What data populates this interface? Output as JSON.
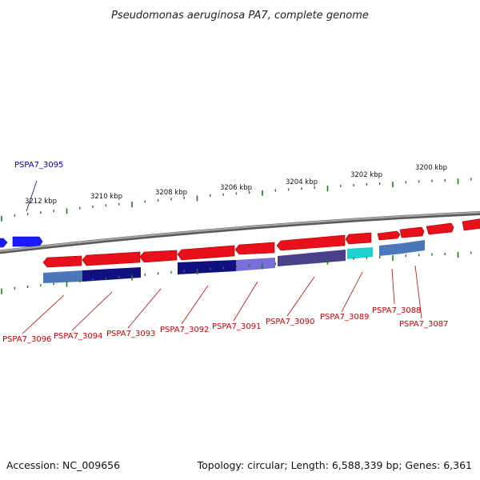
{
  "title": "Pseudomonas aeruginosa PA7, complete genome",
  "accession": "Accession: NC_009656",
  "summary": "Topology: circular; Length: 6,588,339 bp; Genes: 6,361",
  "ruler_labels": [
    "3212 kbp",
    "3210 kbp",
    "3208 kbp",
    "3206 kbp",
    "3204 kbp",
    "3202 kbp",
    "3200 kbp"
  ],
  "gene_labels": [
    "PSPA7_3095",
    "PSPA7_3096",
    "PSPA7_3094",
    "PSPA7_3093",
    "PSPA7_3092",
    "PSPA7_3091",
    "PSPA7_3090",
    "PSPA7_3089",
    "PSPA7_3088",
    "PSPA7_3087"
  ],
  "colors": {
    "backbone": "#8a8a8a",
    "gene_red": "#e8101a",
    "gene_blue": "#1a1aff",
    "tick_green": "#1f7a1f",
    "label_red": "#cc0000",
    "label_blue": "#0000aa",
    "cog_navy": "#101080",
    "cog_steel": "#4a78b8",
    "cog_slate": "#4a3f8a",
    "cog_lavender": "#7a6fd8",
    "cog_cyan": "#20d0d0"
  }
}
